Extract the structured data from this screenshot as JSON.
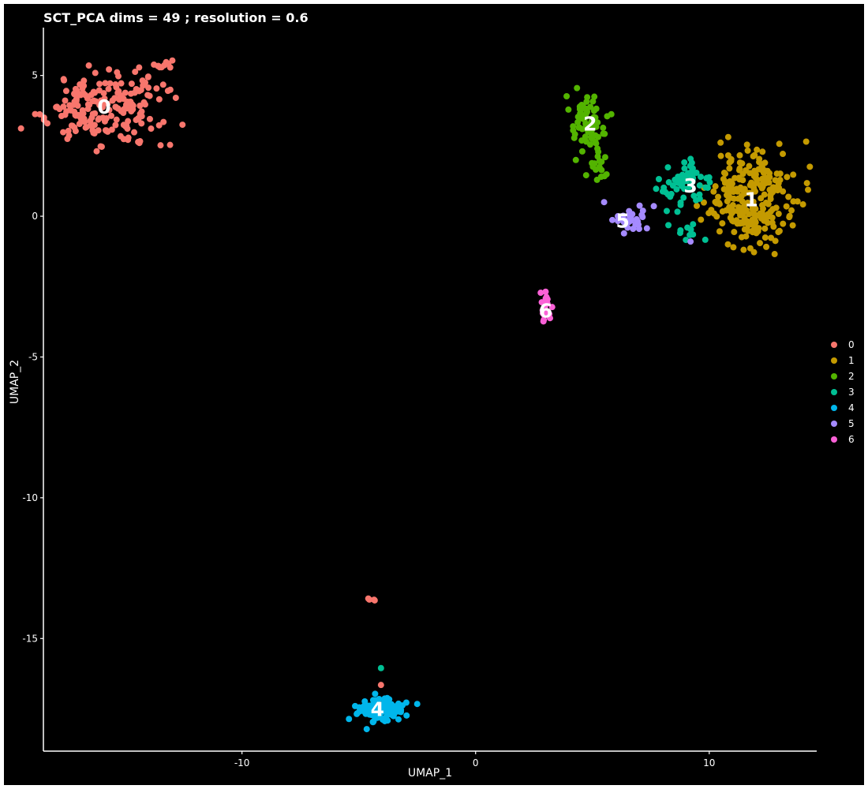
{
  "chart_data": {
    "type": "scatter",
    "title": "SCT_PCA dims =  49 ; resolution = 0.6",
    "xlabel": "UMAP_1",
    "ylabel": "UMAP_2",
    "xlim": [
      -18.5,
      14.6
    ],
    "ylim": [
      -19.0,
      6.7
    ],
    "xticks": [
      -10,
      0,
      10
    ],
    "yticks": [
      5,
      0,
      -5,
      -10,
      -15
    ],
    "grid": false,
    "legend_position": "right",
    "background": "#000000",
    "foreground": "#ffffff",
    "series": [
      {
        "name": "0",
        "color": "#F8766D"
      },
      {
        "name": "1",
        "color": "#C49A00"
      },
      {
        "name": "2",
        "color": "#53B400"
      },
      {
        "name": "3",
        "color": "#00C094"
      },
      {
        "name": "4",
        "color": "#00B6EB"
      },
      {
        "name": "5",
        "color": "#A58AFF"
      },
      {
        "name": "6",
        "color": "#FB61D7"
      }
    ],
    "blobs": [
      {
        "series": "0",
        "cx": -15.9,
        "cy": 3.9,
        "sx": 1.25,
        "sy": 0.65,
        "n": 200,
        "seed": 11
      },
      {
        "series": "0",
        "cx": -13.5,
        "cy": 5.4,
        "sx": 0.18,
        "sy": 0.1,
        "n": 9,
        "seed": 12
      },
      {
        "series": "0",
        "cx": -4.5,
        "cy": -13.65,
        "sx": 0.07,
        "sy": 0.04,
        "n": 4,
        "seed": 13
      },
      {
        "series": "0",
        "cx": -4.05,
        "cy": -16.65,
        "sx": 0.04,
        "sy": 0.04,
        "n": 1,
        "seed": 14
      },
      {
        "series": "1",
        "cx": 11.8,
        "cy": 0.6,
        "sx": 0.95,
        "sy": 0.85,
        "n": 250,
        "seed": 21
      },
      {
        "series": "2",
        "cx": 4.8,
        "cy": 3.4,
        "sx": 0.35,
        "sy": 0.5,
        "n": 75,
        "seed": 31
      },
      {
        "series": "2",
        "cx": 5.3,
        "cy": 1.8,
        "sx": 0.2,
        "sy": 0.3,
        "n": 16,
        "seed": 32
      },
      {
        "series": "3",
        "cx": 9.0,
        "cy": 1.2,
        "sx": 0.6,
        "sy": 0.45,
        "n": 60,
        "seed": 41
      },
      {
        "series": "3",
        "cx": 9.4,
        "cy": -0.5,
        "sx": 0.35,
        "sy": 0.3,
        "n": 10,
        "seed": 42
      },
      {
        "series": "3",
        "cx": -4.05,
        "cy": -16.05,
        "sx": 0.04,
        "sy": 0.04,
        "n": 1,
        "seed": 43
      },
      {
        "series": "4",
        "cx": -4.1,
        "cy": -17.55,
        "sx": 0.55,
        "sy": 0.2,
        "n": 110,
        "seed": 51
      },
      {
        "series": "5",
        "cx": 6.6,
        "cy": -0.1,
        "sx": 0.55,
        "sy": 0.2,
        "n": 32,
        "seed": 61
      },
      {
        "series": "5",
        "cx": 5.5,
        "cy": 0.5,
        "sx": 0.04,
        "sy": 0.04,
        "n": 1,
        "seed": 62
      },
      {
        "series": "5",
        "cx": 9.2,
        "cy": -0.9,
        "sx": 0.04,
        "sy": 0.04,
        "n": 1,
        "seed": 63
      },
      {
        "series": "6",
        "cx": 3.0,
        "cy": -3.25,
        "sx": 0.12,
        "sy": 0.3,
        "n": 22,
        "seed": 71
      }
    ],
    "cluster_labels": [
      {
        "text": "0",
        "x": -15.9,
        "y": 3.9
      },
      {
        "text": "1",
        "x": 11.8,
        "y": 0.6
      },
      {
        "text": "2",
        "x": 4.9,
        "y": 3.3
      },
      {
        "text": "3",
        "x": 9.2,
        "y": 1.1
      },
      {
        "text": "4",
        "x": -4.2,
        "y": -17.5
      },
      {
        "text": "5",
        "x": 6.3,
        "y": -0.15
      },
      {
        "text": "6",
        "x": 3.0,
        "y": -3.35
      }
    ]
  }
}
